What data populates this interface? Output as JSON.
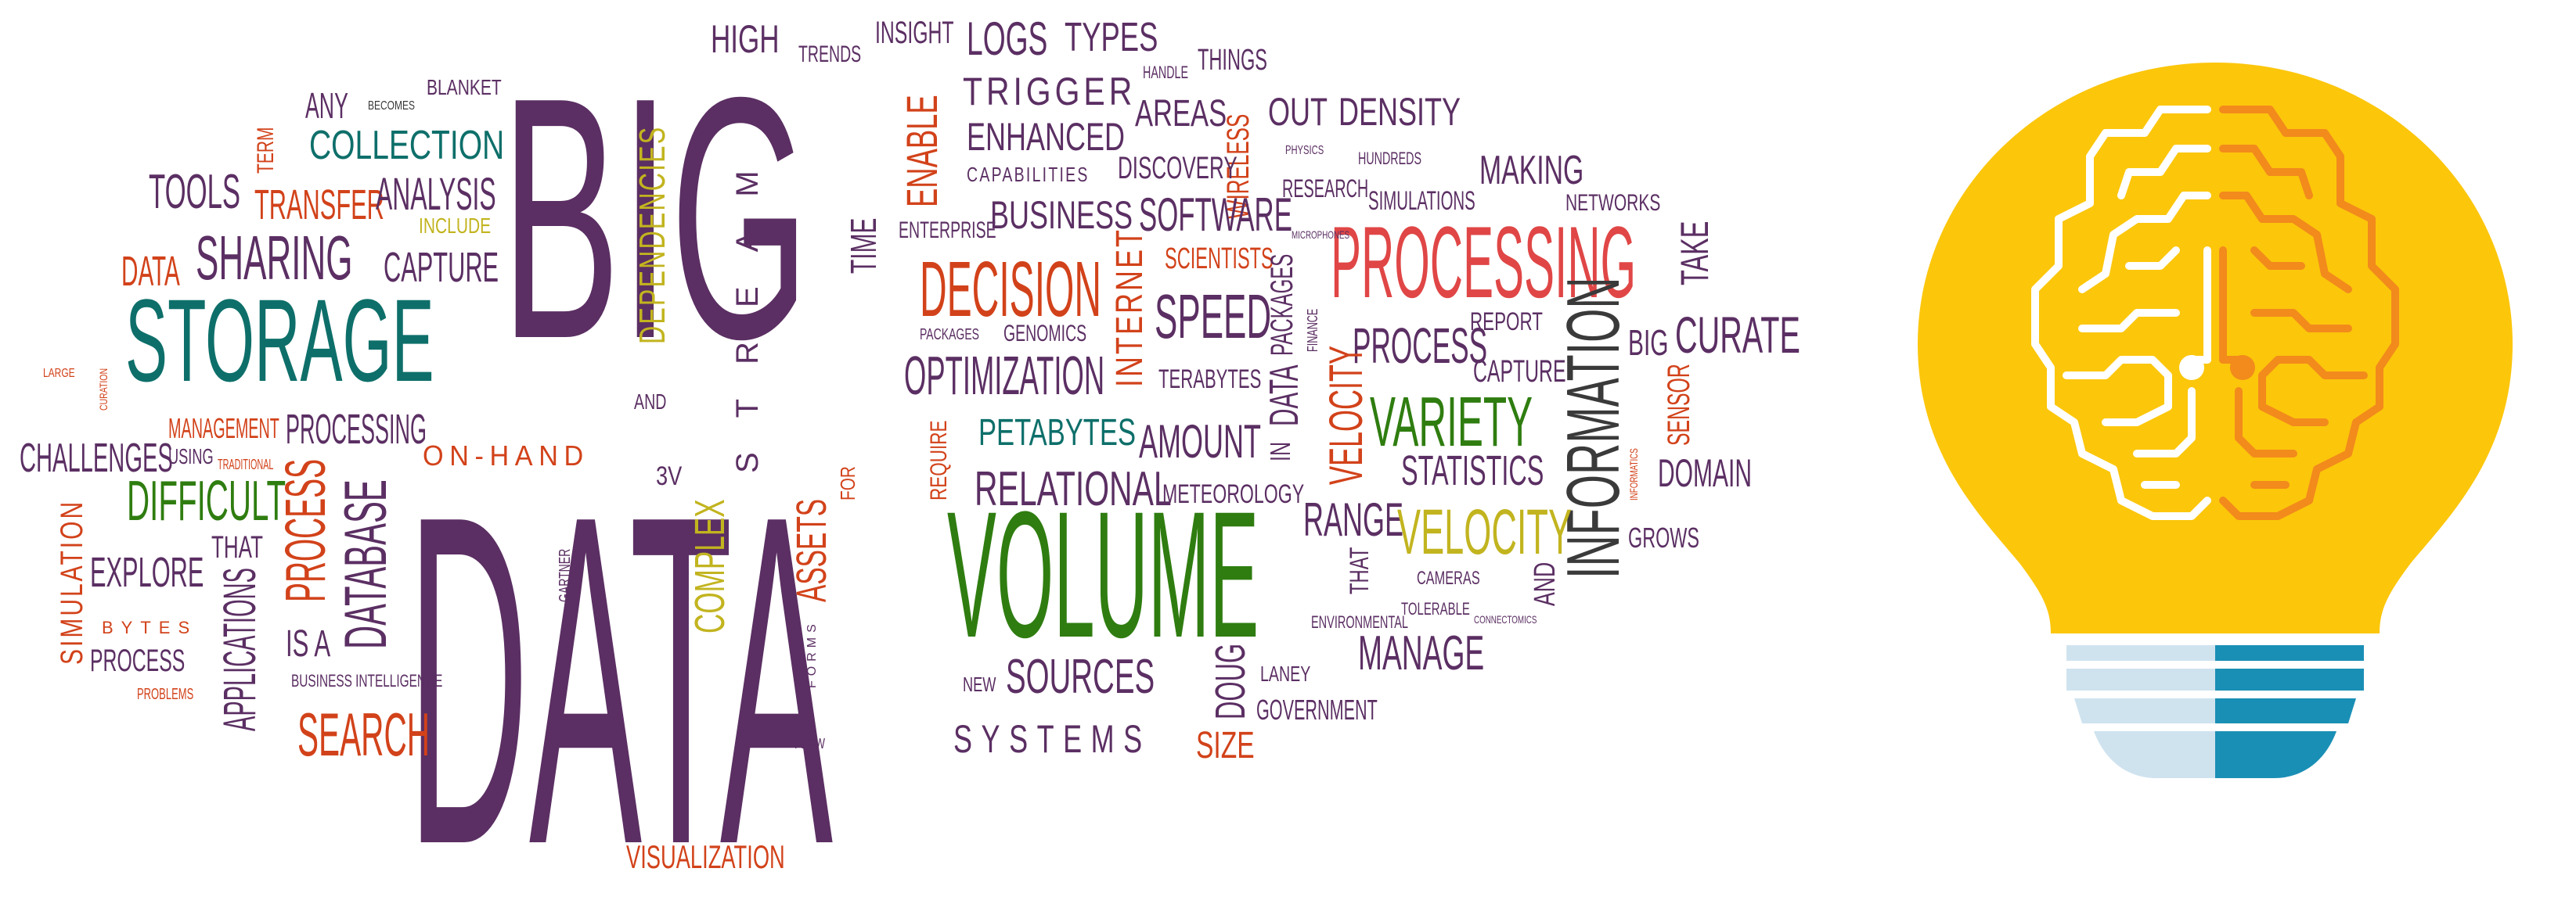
{
  "words": {
    "big": "BIG",
    "data_big": "DATA",
    "storage": "STORAGE",
    "volume": "VOLUME",
    "processing": "PROCESSING",
    "information": "INFORMATION",
    "decision": "DECISION",
    "sharing": "SHARING",
    "collection": "COLLECTION",
    "search": "SEARCH",
    "database": "DATABASE",
    "difficult": "DIFFICULT",
    "challenges": "CHALLENGES",
    "tools": "TOOLS",
    "transfer": "TRANSFER",
    "analysis": "ANALYSIS",
    "capture": "CAPTURE",
    "data_small": "DATA",
    "any": "ANY",
    "becomes": "BECOMES",
    "blanket": "BLANKET",
    "term": "TERM",
    "include": "INCLUDE",
    "large": "LARGE",
    "curation": "CURATION",
    "management": "MANAGEMENT",
    "using": "USING",
    "traditional": "TRADITIONAL",
    "processing_small": "PROCESSING",
    "on_hand": "ON-HAND",
    "explore": "EXPLORE",
    "that_left": "THAT",
    "applications": "APPLICATIONS",
    "process_left": "PROCESS",
    "is_a": "IS A",
    "simulation": "SIMULATION",
    "bytes": "BYTES",
    "process_small": "PROCESS",
    "problems": "PROBLEMS",
    "business_intelligence": "BUSINESS INTELLIGENCE",
    "dependencies": "DEPENDENCIES",
    "and_left": "AND",
    "stream": "STREAM",
    "high": "HIGH",
    "trends": "TRENDS",
    "insight": "INSIGHT",
    "time": "TIME",
    "enable": "ENABLE",
    "logs": "LOGS",
    "types": "TYPES",
    "handle": "HANDLE",
    "things": "THINGS",
    "trigger": "TRIGGER",
    "enhanced": "ENHANCED",
    "capabilities": "CAPABILITIES",
    "areas": "AREAS",
    "out": "OUT",
    "density": "DENSITY",
    "wireless": "WIRELESS",
    "discovery": "DISCOVERY",
    "physics": "PHYSICS",
    "hundreds": "HUNDREDS",
    "making": "MAKING",
    "business": "BUSINESS",
    "enterprise": "ENTERPRISE",
    "software": "SOFTWARE",
    "research": "RESEARCH",
    "simulations": "SIMULATIONS",
    "networks": "NETWORKS",
    "microphones": "MICROPHONES",
    "scientists": "SCIENTISTS",
    "internet": "INTERNET",
    "speed": "SPEED",
    "packages_v": "PACKAGES",
    "finance": "FINANCE",
    "take": "TAKE",
    "packages_small": "PACKAGES",
    "genomics": "GENOMICS",
    "optimization": "OPTIMIZATION",
    "terabytes": "TERABYTES",
    "in": "IN",
    "data_v": "DATA",
    "process_mid": "PROCESS",
    "report": "REPORT",
    "capture_mid": "CAPTURE",
    "big_small": "BIG",
    "curate": "CURATE",
    "require": "REQUIRE",
    "petabytes": "PETABYTES",
    "amount": "AMOUNT",
    "velocity_v": "VELOCITY",
    "variety": "VARIETY",
    "statistics": "STATISTICS",
    "sensor": "SENSOR",
    "informatics": "INFORMATICS",
    "domain": "DOMAIN",
    "relational": "RELATIONAL",
    "meteorology": "METEOROLOGY",
    "range": "RANGE",
    "velocity_h": "VELOCITY",
    "grows": "GROWS",
    "that_mid": "THAT",
    "and_mid": "AND",
    "cameras": "CAMERAS",
    "tolerable": "TOLERABLE",
    "connectomics": "CONNECTOMICS",
    "environmental": "ENVIRONMENTAL",
    "manage": "MANAGE",
    "3v": "3V",
    "for": "FOR",
    "gartner": "GARTNER",
    "complex": "COMPLEX",
    "assets": "ASSETS",
    "forms": "FORMS",
    "new": "NEW",
    "sources": "SOURCES",
    "doug": "DOUG",
    "laney": "LANEY",
    "government": "GOVERNMENT",
    "flow": "FLOW",
    "systems": "SYSTEMS",
    "size": "SIZE",
    "visualization": "VISUALIZATION"
  },
  "colors": {
    "purple": "#5b2f63",
    "teal": "#0e6f6a",
    "orange": "#d2421a",
    "green": "#2f7d10",
    "red": "#e04646",
    "olive": "#c2b41f",
    "bulb_yellow": "#fcc60b",
    "bulb_orange": "#f28a1c",
    "base_light": "#cfe3ef",
    "base_blue": "#1a8fb5"
  },
  "icons": {
    "bulb": "lightbulb-brain-icon"
  }
}
